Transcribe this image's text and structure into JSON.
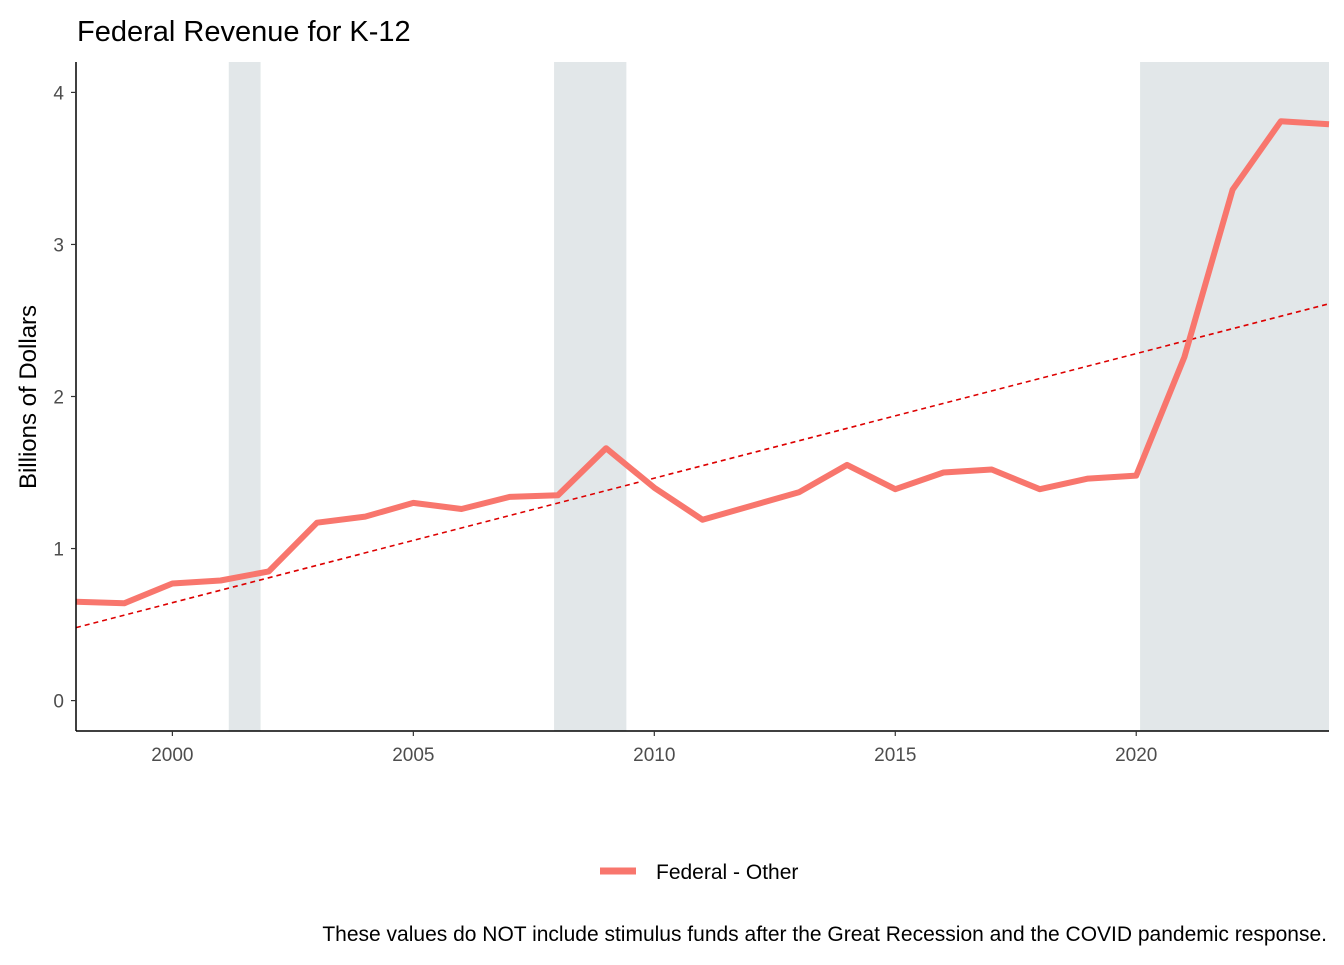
{
  "chart_data": {
    "type": "line",
    "title": "Federal Revenue for K-12",
    "subtitle": "",
    "xlabel": "",
    "ylabel": "Billions of Dollars",
    "caption": "These values do NOT include stimulus funds after the Great Recession and the COVID pandemic response.",
    "xlim": [
      1998,
      2024
    ],
    "ylim": [
      -0.2,
      4.2
    ],
    "x_ticks": [
      2000,
      2005,
      2010,
      2015,
      2020
    ],
    "y_ticks": [
      0,
      1,
      2,
      3,
      4
    ],
    "grid": false,
    "legend_position": "bottom",
    "recession_shading": [
      {
        "start": 2001.17,
        "end": 2001.83
      },
      {
        "start": 2007.92,
        "end": 2009.42
      },
      {
        "start": 2020.08,
        "end": 2024.0
      }
    ],
    "recession_color": "#e2e7e9",
    "series": [
      {
        "name": "Federal - Other",
        "color": "#f8766d",
        "x": [
          1998,
          1999,
          2000,
          2001,
          2002,
          2003,
          2004,
          2005,
          2006,
          2007,
          2008,
          2009,
          2010,
          2011,
          2012,
          2013,
          2014,
          2015,
          2016,
          2017,
          2018,
          2019,
          2020,
          2021,
          2022,
          2023,
          2024
        ],
        "values": [
          0.65,
          0.64,
          0.77,
          0.79,
          0.85,
          1.17,
          1.21,
          1.3,
          1.26,
          1.34,
          1.35,
          1.66,
          1.4,
          1.19,
          1.28,
          1.37,
          1.55,
          1.39,
          1.5,
          1.52,
          1.39,
          1.46,
          1.48,
          2.26,
          3.36,
          3.81,
          3.79
        ]
      }
    ],
    "trend_line": {
      "color": "#dd0000",
      "style": "dashed",
      "x": [
        1998,
        2024
      ],
      "values": [
        0.48,
        2.61
      ]
    }
  }
}
